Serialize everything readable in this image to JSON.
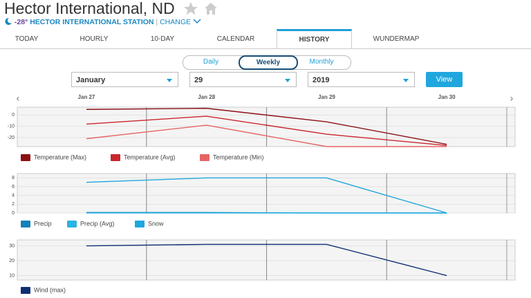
{
  "header": {
    "title": "Hector International, ND",
    "temperature": "-28°",
    "station": "HECTOR INTERNATIONAL STATION",
    "change": "CHANGE"
  },
  "tabs": [
    "TODAY",
    "HOURLY",
    "10-DAY",
    "CALENDAR",
    "HISTORY",
    "WUNDERMAP"
  ],
  "period_toggle": [
    "Daily",
    "Weekly",
    "Monthly"
  ],
  "controls": {
    "month": "January",
    "day": "29",
    "year": "2019",
    "button": "View"
  },
  "history": {
    "categories": [
      "Jan 27",
      "Jan 28",
      "Jan 29",
      "Jan 30"
    ],
    "charts": [
      {
        "type": "line",
        "ylim": [
          -28,
          7
        ],
        "yticks": [
          0,
          -10,
          -20
        ],
        "series": [
          {
            "name": "Temperature (Max)",
            "color": "#8b1014",
            "values": [
              5,
              6,
              -6,
              -26
            ]
          },
          {
            "name": "Temperature (Avg)",
            "color": "#c9262d",
            "values": [
              -8,
              -1,
              -17,
              -27
            ]
          },
          {
            "name": "Temperature (Min)",
            "color": "#e66565",
            "values": [
              -21,
              -9,
              -28,
              -28
            ]
          }
        ]
      },
      {
        "type": "line",
        "ylim": [
          0,
          9
        ],
        "yticks": [
          8,
          6,
          4,
          2,
          0
        ],
        "series": [
          {
            "name": "Precip",
            "color": "#1580b8",
            "values": [
              0.1,
              0.1,
              0,
              0
            ]
          },
          {
            "name": "Precip (Avg)",
            "color": "#2ab3e3",
            "values": [
              0,
              0,
              0,
              0
            ]
          },
          {
            "name": "Snow",
            "color": "#1fa7de",
            "values": [
              7,
              8,
              8,
              0
            ]
          }
        ]
      },
      {
        "type": "line",
        "ylim": [
          7,
          34
        ],
        "yticks": [
          30,
          20,
          10
        ],
        "series": [
          {
            "name": "Wind (max)",
            "color": "#0e2f72",
            "values": [
              30,
              31,
              31,
              10
            ]
          }
        ]
      }
    ]
  }
}
